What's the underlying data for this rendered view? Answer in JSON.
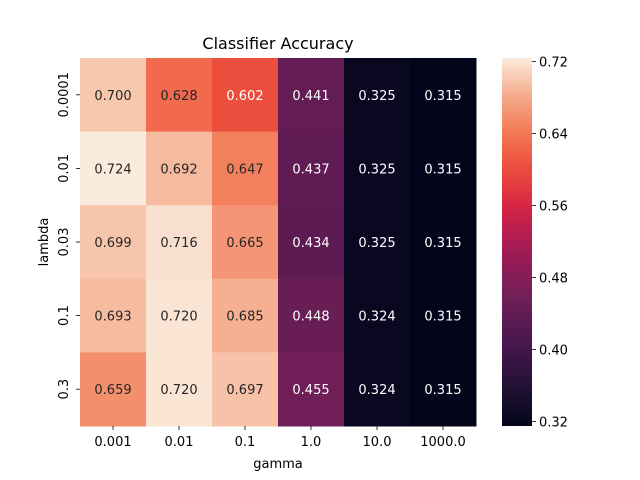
{
  "chart_data": {
    "type": "heatmap",
    "title": "Classifier Accuracy",
    "xlabel": "gamma",
    "ylabel": "lambda",
    "x_categories": [
      "0.001",
      "0.01",
      "0.1",
      "1.0",
      "10.0",
      "1000.0"
    ],
    "y_categories": [
      "0.0001",
      "0.01",
      "0.03",
      "0.1",
      "0.3"
    ],
    "values": [
      [
        0.7,
        0.628,
        0.602,
        0.441,
        0.325,
        0.315
      ],
      [
        0.724,
        0.692,
        0.647,
        0.437,
        0.325,
        0.315
      ],
      [
        0.699,
        0.716,
        0.665,
        0.434,
        0.325,
        0.315
      ],
      [
        0.693,
        0.72,
        0.685,
        0.448,
        0.324,
        0.315
      ],
      [
        0.659,
        0.72,
        0.697,
        0.455,
        0.324,
        0.315
      ]
    ],
    "value_format": "0.000",
    "colormap": "rocket",
    "color_range": [
      0.315,
      0.724
    ],
    "colorbar_ticks": [
      "0.32",
      "0.40",
      "0.48",
      "0.56",
      "0.64",
      "0.72"
    ],
    "colorbar_tick_values": [
      0.32,
      0.4,
      0.48,
      0.56,
      0.64,
      0.72
    ],
    "grid": false,
    "legend": "colorbar-right"
  }
}
